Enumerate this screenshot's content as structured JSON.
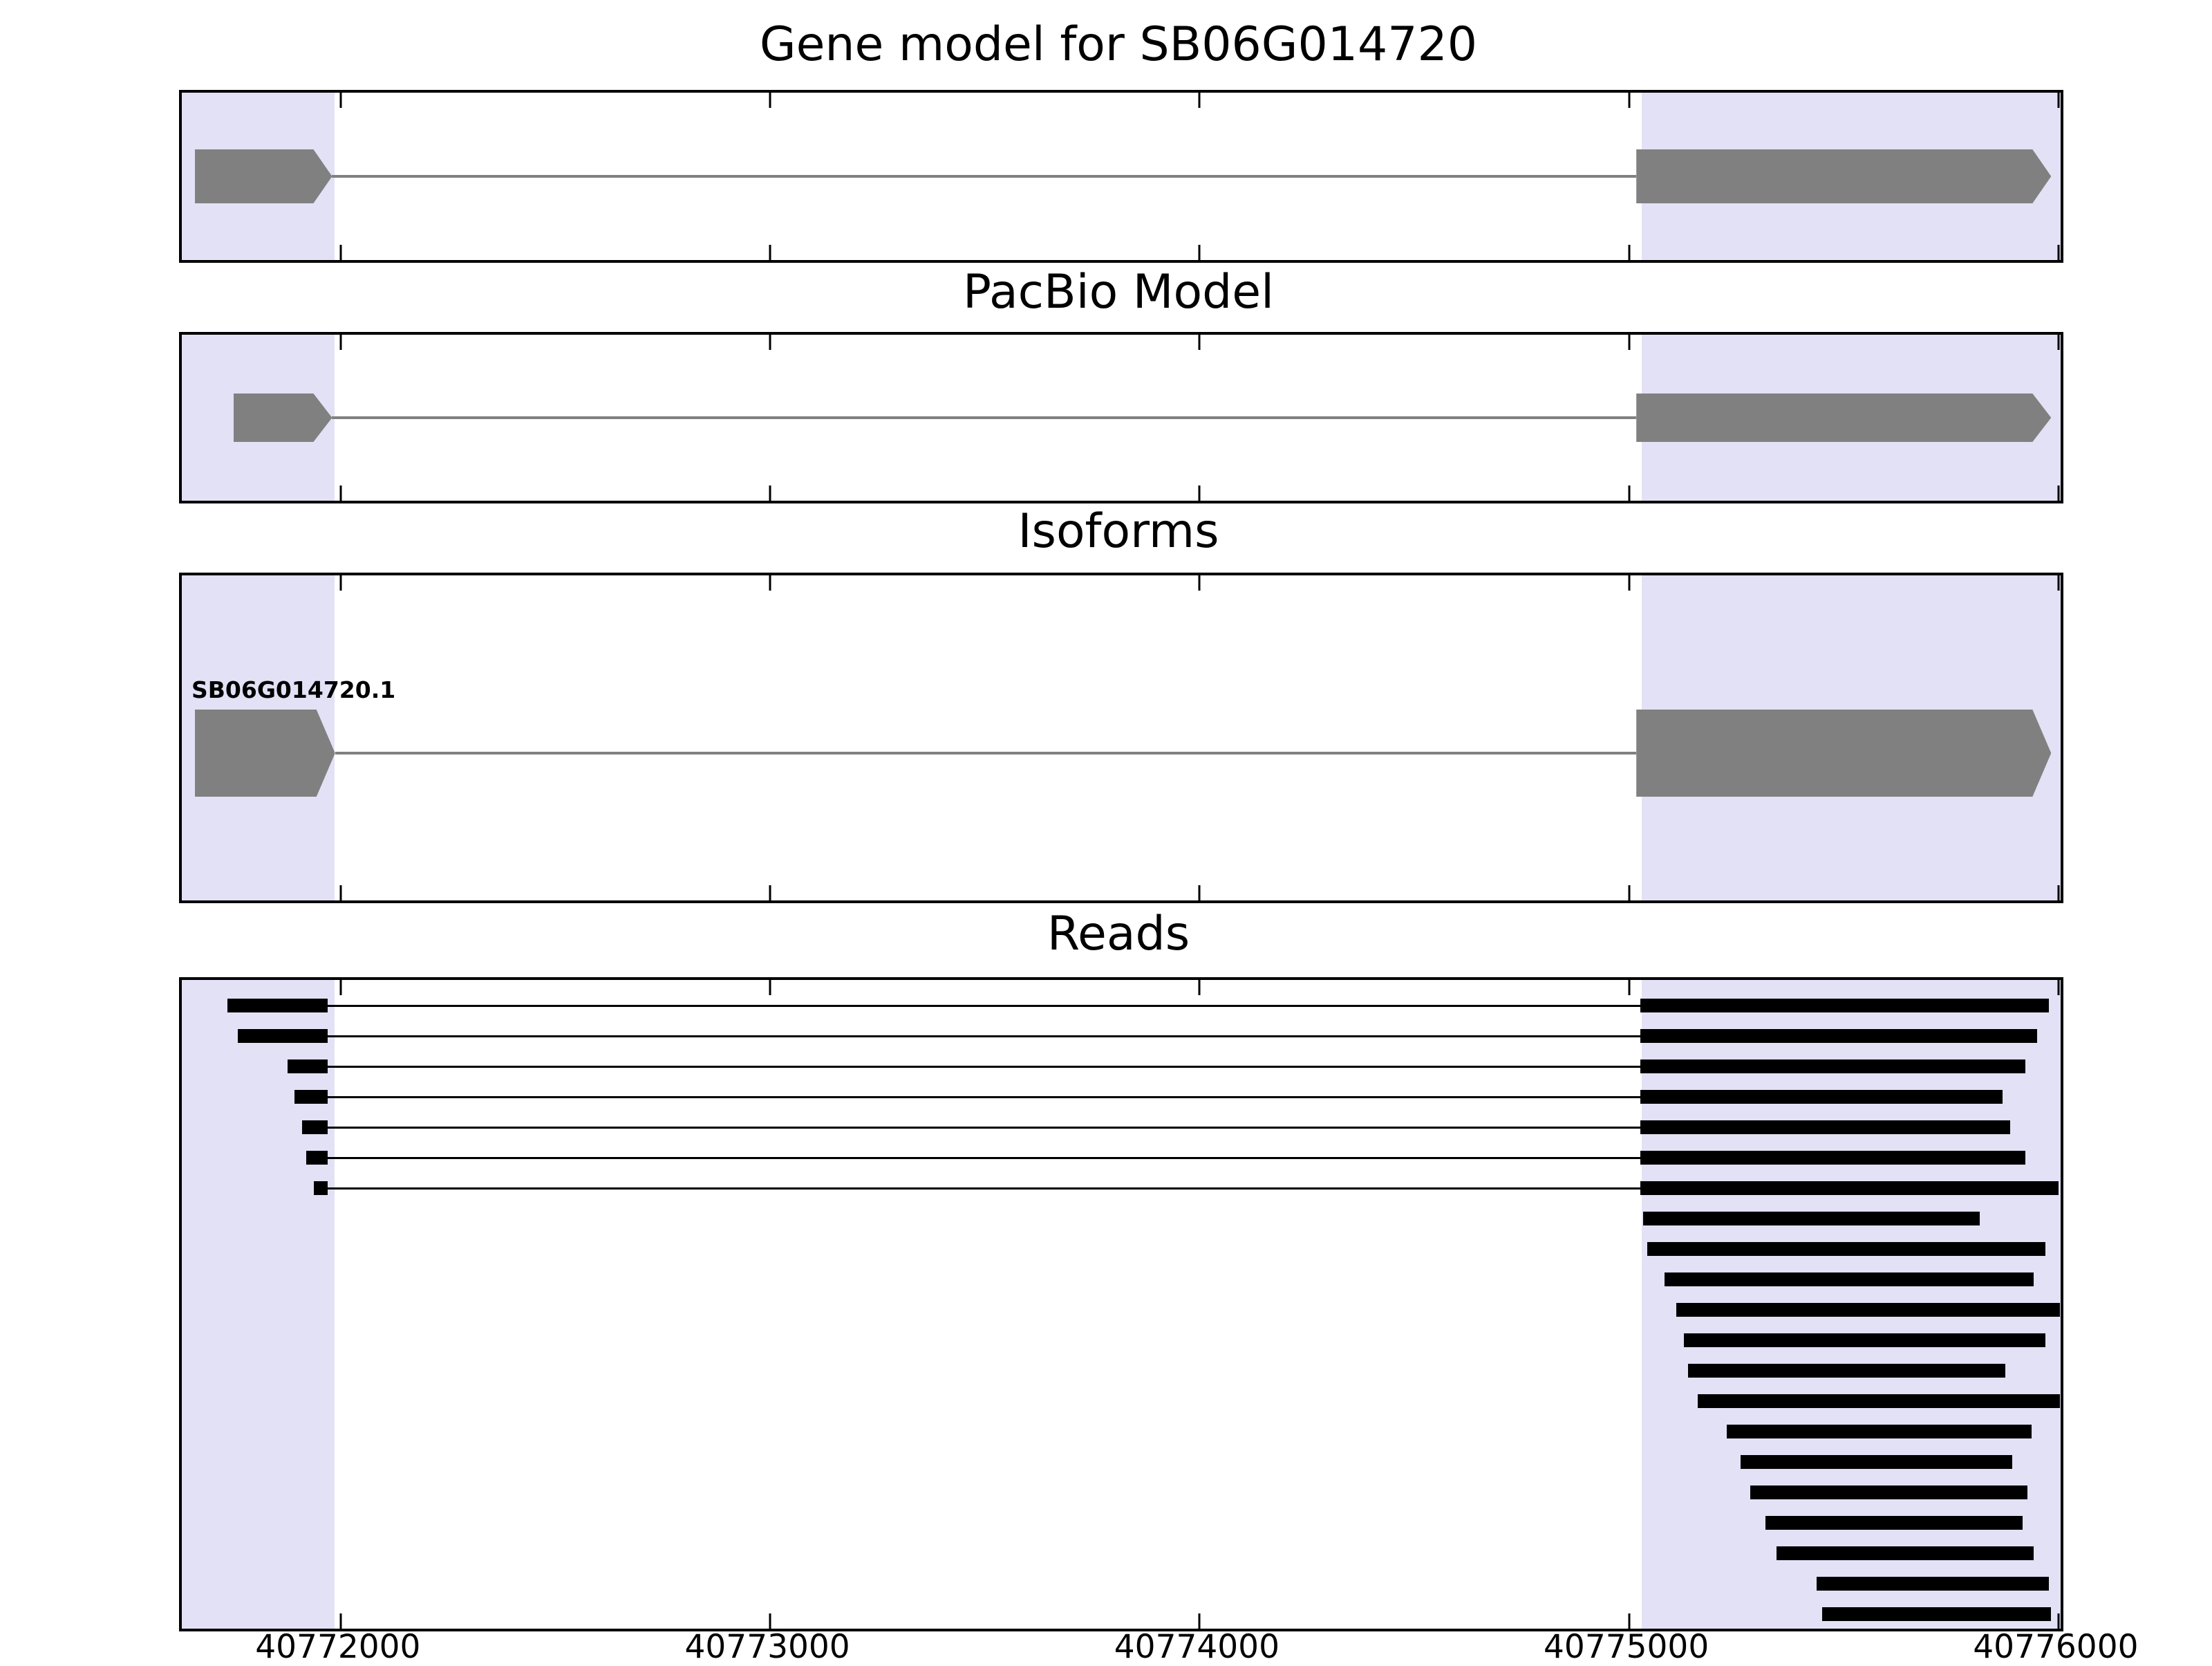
{
  "chart_data": {
    "type": "gene-model-tracks",
    "xlim": [
      40771630,
      40776005
    ],
    "xticks": [
      40772000,
      40773000,
      40774000,
      40775000,
      40776000
    ],
    "xtick_labels": [
      "40772000",
      "40773000",
      "40774000",
      "40775000",
      "40776000"
    ],
    "grid": false,
    "legend": "none",
    "colors": {
      "highlight": "#e3e1f5",
      "model": "#808080",
      "read": "#000000"
    },
    "highlight_regions": [
      [
        40771630,
        40771985
      ],
      [
        40775030,
        40776005
      ]
    ],
    "panels": [
      {
        "title": "Gene model for SB06G014720",
        "type": "model",
        "exons": [
          [
            40771660,
            40771980
          ],
          [
            40775017,
            40775983
          ]
        ],
        "intron": [
          [
            40771980,
            40775017
          ]
        ]
      },
      {
        "title": "PacBio Model",
        "type": "model",
        "exons": [
          [
            40771750,
            40771980
          ],
          [
            40775017,
            40775983
          ]
        ],
        "intron": [
          [
            40771980,
            40775017
          ]
        ]
      },
      {
        "title": "Isoforms",
        "type": "model",
        "label": "SB06G014720.1",
        "exons": [
          [
            40771660,
            40771987
          ],
          [
            40775017,
            40775983
          ]
        ],
        "intron": [
          [
            40771987,
            40775017
          ]
        ]
      },
      {
        "title": "Reads",
        "type": "reads",
        "reads": [
          {
            "blocks": [
              [
                40771737,
                40771970
              ],
              [
                40775027,
                40775977
              ]
            ]
          },
          {
            "blocks": [
              [
                40771760,
                40771970
              ],
              [
                40775027,
                40775950
              ]
            ]
          },
          {
            "blocks": [
              [
                40771877,
                40771970
              ],
              [
                40775027,
                40775923
              ]
            ]
          },
          {
            "blocks": [
              [
                40771893,
                40771970
              ],
              [
                40775027,
                40775870
              ]
            ]
          },
          {
            "blocks": [
              [
                40771910,
                40771970
              ],
              [
                40775027,
                40775887
              ]
            ]
          },
          {
            "blocks": [
              [
                40771920,
                40771970
              ],
              [
                40775027,
                40775923
              ]
            ]
          },
          {
            "blocks": [
              [
                40771937,
                40771970
              ],
              [
                40775027,
                40776000
              ]
            ]
          },
          {
            "blocks": [
              [
                40775033,
                40775817
              ]
            ]
          },
          {
            "blocks": [
              [
                40775043,
                40775970
              ]
            ]
          },
          {
            "blocks": [
              [
                40775083,
                40775943
              ]
            ]
          },
          {
            "blocks": [
              [
                40775110,
                40776003
              ]
            ]
          },
          {
            "blocks": [
              [
                40775127,
                40775970
              ]
            ]
          },
          {
            "blocks": [
              [
                40775137,
                40775877
              ]
            ]
          },
          {
            "blocks": [
              [
                40775160,
                40776003
              ]
            ]
          },
          {
            "blocks": [
              [
                40775227,
                40775937
              ]
            ]
          },
          {
            "blocks": [
              [
                40775260,
                40775893
              ]
            ]
          },
          {
            "blocks": [
              [
                40775283,
                40775927
              ]
            ]
          },
          {
            "blocks": [
              [
                40775317,
                40775917
              ]
            ]
          },
          {
            "blocks": [
              [
                40775343,
                40775943
              ]
            ]
          },
          {
            "blocks": [
              [
                40775437,
                40775977
              ]
            ]
          },
          {
            "blocks": [
              [
                40775450,
                40775983
              ]
            ]
          }
        ]
      }
    ]
  }
}
